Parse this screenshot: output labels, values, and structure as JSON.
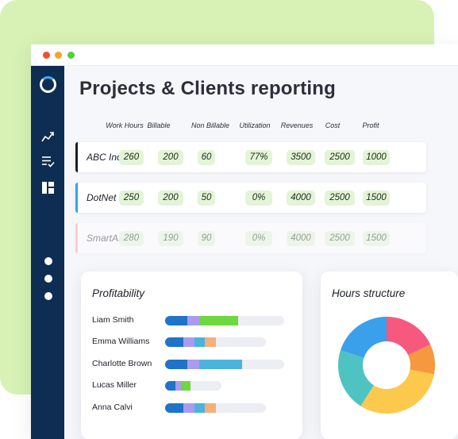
{
  "window": {
    "title": "Projects & Clients reporting"
  },
  "sidebar": {
    "icons": [
      "logo-ring-icon",
      "trend-chart-icon",
      "checklist-icon",
      "dashboard-grid-icon"
    ],
    "dots": 3
  },
  "table": {
    "columns": [
      "Work Hours",
      "Billable",
      "Non Billable",
      "Utilization",
      "Revenues",
      "Cost",
      "Profit"
    ],
    "rows": [
      {
        "client": "ABC Inc.",
        "accent": "#1c1f28",
        "values": [
          "260",
          "200",
          "60",
          "77%",
          "3500",
          "2500",
          "1000"
        ]
      },
      {
        "client": "DotNet Inc.",
        "accent": "#3aa2e8",
        "values": [
          "250",
          "200",
          "50",
          "0%",
          "4000",
          "2500",
          "1500"
        ]
      },
      {
        "client": "SmartAI Ltd.",
        "accent": "#f2a3a3",
        "values": [
          "280",
          "190",
          "90",
          "0%",
          "4000",
          "2500",
          "1500"
        ]
      }
    ]
  },
  "profitability": {
    "title": "Profitability",
    "colors": {
      "blue": "#1f73c9",
      "purple": "#a99cf0",
      "green": "#6ed840",
      "teal": "#4cb3de",
      "orange": "#f5b07a"
    },
    "people": [
      {
        "name": "Liam  Smith",
        "segments": [
          [
            "blue",
            0.46
          ],
          [
            "purple",
            0.25
          ],
          [
            "green",
            0.83
          ]
        ]
      },
      {
        "name": "Emma Williams",
        "segments": [
          [
            "blue",
            0.38
          ],
          [
            "purple",
            0.23
          ],
          [
            "teal",
            0.23
          ],
          [
            "orange",
            0.23
          ]
        ]
      },
      {
        "name": "Charlotte  Brown",
        "segments": [
          [
            "blue",
            0.46
          ],
          [
            "purple",
            0.25
          ],
          [
            "teal",
            0.9
          ]
        ]
      },
      {
        "name": "Lucas Miller",
        "segments": [
          [
            "blue",
            0.21
          ],
          [
            "purple",
            0.12
          ],
          [
            "green",
            0.21
          ]
        ]
      },
      {
        "name": "Anna Calvi",
        "segments": [
          [
            "blue",
            0.38
          ],
          [
            "purple",
            0.23
          ],
          [
            "teal",
            0.23
          ],
          [
            "orange",
            0.23
          ]
        ]
      }
    ]
  },
  "hours_structure": {
    "title": "Hours structure",
    "slices": [
      {
        "color": "#f7587e",
        "value": 0.18
      },
      {
        "color": "#f6983e",
        "value": 0.1
      },
      {
        "color": "#fcc94d",
        "value": 0.31
      },
      {
        "color": "#4fc2c2",
        "value": 0.21
      },
      {
        "color": "#3aa0ec",
        "value": 0.2
      }
    ]
  }
}
